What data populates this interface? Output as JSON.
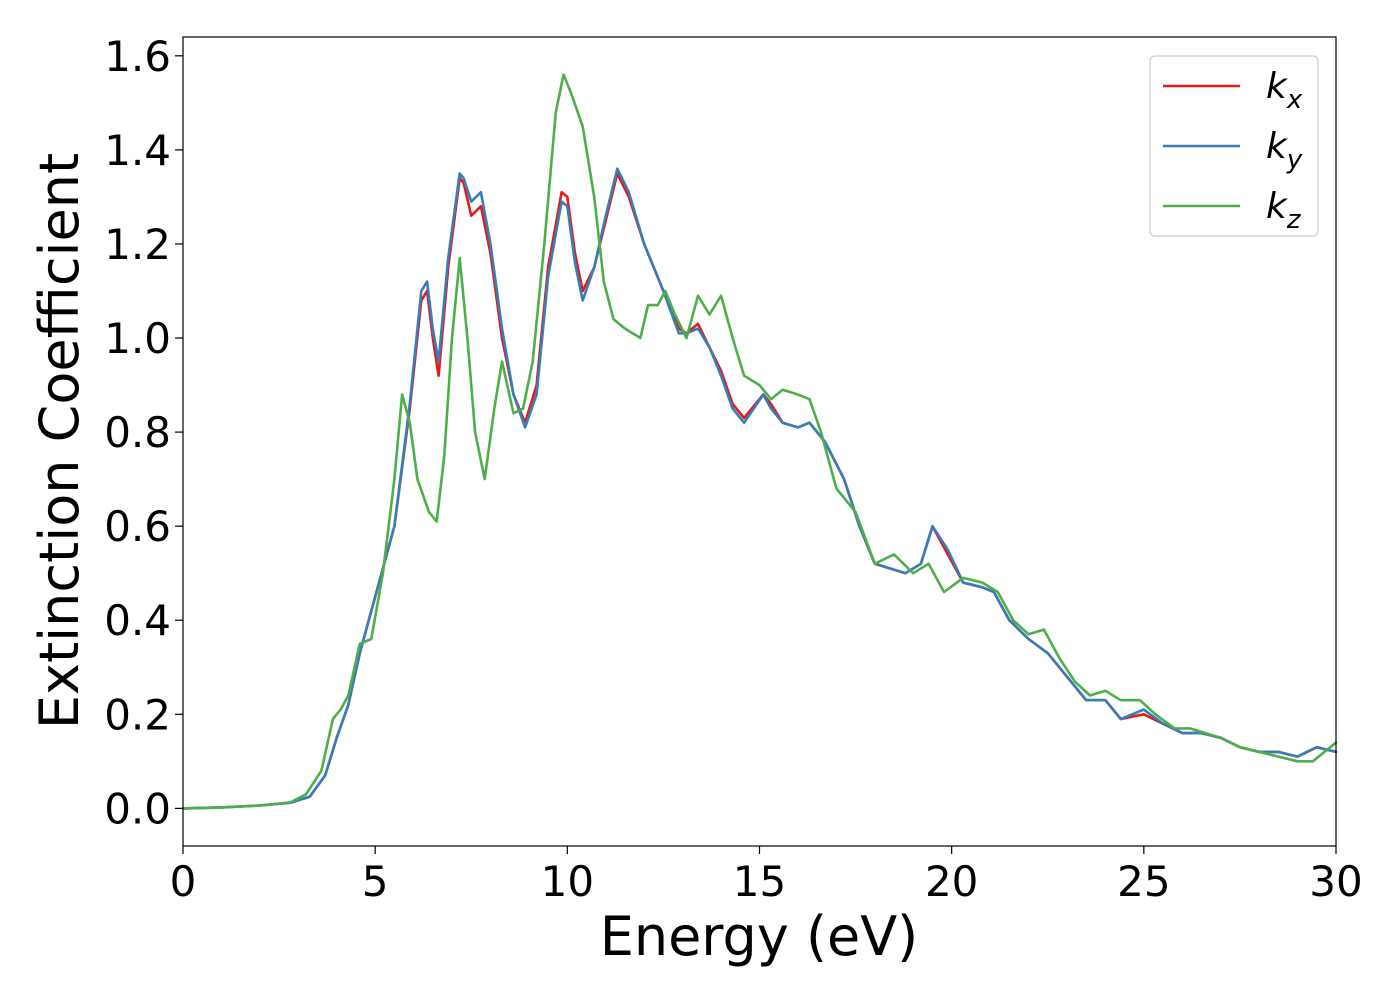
{
  "chart_data": {
    "type": "line",
    "xlabel": "Energy (eV)",
    "ylabel": "Extinction Coefficient",
    "xlim": [
      0,
      30
    ],
    "ylim": [
      -0.08,
      1.64
    ],
    "xticks": [
      0,
      5,
      10,
      15,
      20,
      25,
      30
    ],
    "yticks": [
      0.0,
      0.2,
      0.4,
      0.6,
      0.8,
      1.0,
      1.2,
      1.4,
      1.6
    ],
    "grid": false,
    "legend": "top-right",
    "series": [
      {
        "name": "k_x",
        "label_base": "k",
        "label_sub": "x",
        "color": "#e41a1c",
        "points": [
          [
            0,
            0.0
          ],
          [
            1,
            0.002
          ],
          [
            2,
            0.006
          ],
          [
            2.8,
            0.012
          ],
          [
            3.3,
            0.025
          ],
          [
            3.7,
            0.07
          ],
          [
            4.0,
            0.15
          ],
          [
            4.3,
            0.22
          ],
          [
            4.6,
            0.33
          ],
          [
            5.0,
            0.45
          ],
          [
            5.5,
            0.6
          ],
          [
            5.9,
            0.85
          ],
          [
            6.2,
            1.08
          ],
          [
            6.35,
            1.1
          ],
          [
            6.5,
            1.0
          ],
          [
            6.65,
            0.92
          ],
          [
            6.9,
            1.15
          ],
          [
            7.2,
            1.34
          ],
          [
            7.3,
            1.33
          ],
          [
            7.5,
            1.26
          ],
          [
            7.75,
            1.28
          ],
          [
            8.0,
            1.18
          ],
          [
            8.3,
            1.0
          ],
          [
            8.6,
            0.88
          ],
          [
            8.9,
            0.82
          ],
          [
            9.2,
            0.9
          ],
          [
            9.5,
            1.15
          ],
          [
            9.85,
            1.31
          ],
          [
            10.0,
            1.3
          ],
          [
            10.2,
            1.18
          ],
          [
            10.4,
            1.1
          ],
          [
            10.7,
            1.15
          ],
          [
            11.0,
            1.25
          ],
          [
            11.3,
            1.35
          ],
          [
            11.6,
            1.3
          ],
          [
            12.0,
            1.2
          ],
          [
            12.5,
            1.1
          ],
          [
            12.9,
            1.02
          ],
          [
            13.1,
            1.01
          ],
          [
            13.4,
            1.03
          ],
          [
            13.7,
            0.98
          ],
          [
            14.0,
            0.93
          ],
          [
            14.3,
            0.86
          ],
          [
            14.6,
            0.83
          ],
          [
            15.1,
            0.88
          ],
          [
            15.3,
            0.86
          ],
          [
            15.6,
            0.82
          ],
          [
            16.0,
            0.81
          ],
          [
            16.3,
            0.82
          ],
          [
            16.7,
            0.78
          ],
          [
            17.2,
            0.7
          ],
          [
            17.6,
            0.6
          ],
          [
            18.0,
            0.52
          ],
          [
            18.4,
            0.51
          ],
          [
            18.8,
            0.5
          ],
          [
            19.2,
            0.52
          ],
          [
            19.5,
            0.6
          ],
          [
            19.9,
            0.54
          ],
          [
            20.3,
            0.48
          ],
          [
            20.8,
            0.47
          ],
          [
            21.1,
            0.46
          ],
          [
            21.5,
            0.4
          ],
          [
            22.0,
            0.36
          ],
          [
            22.5,
            0.33
          ],
          [
            23.0,
            0.28
          ],
          [
            23.5,
            0.23
          ],
          [
            24.0,
            0.23
          ],
          [
            24.4,
            0.19
          ],
          [
            25.0,
            0.2
          ],
          [
            25.5,
            0.18
          ],
          [
            26.0,
            0.16
          ],
          [
            26.5,
            0.16
          ],
          [
            27.0,
            0.15
          ],
          [
            27.5,
            0.13
          ],
          [
            28.0,
            0.12
          ],
          [
            28.5,
            0.12
          ],
          [
            29.0,
            0.11
          ],
          [
            29.5,
            0.13
          ],
          [
            30,
            0.12
          ]
        ]
      },
      {
        "name": "k_y",
        "label_base": "k",
        "label_sub": "y",
        "color": "#377eb8",
        "points": [
          [
            0,
            0.0
          ],
          [
            1,
            0.002
          ],
          [
            2,
            0.006
          ],
          [
            2.8,
            0.012
          ],
          [
            3.3,
            0.025
          ],
          [
            3.7,
            0.07
          ],
          [
            4.0,
            0.15
          ],
          [
            4.3,
            0.22
          ],
          [
            4.6,
            0.33
          ],
          [
            5.0,
            0.45
          ],
          [
            5.5,
            0.6
          ],
          [
            5.9,
            0.86
          ],
          [
            6.2,
            1.1
          ],
          [
            6.35,
            1.12
          ],
          [
            6.5,
            1.02
          ],
          [
            6.65,
            0.95
          ],
          [
            6.9,
            1.17
          ],
          [
            7.2,
            1.35
          ],
          [
            7.3,
            1.34
          ],
          [
            7.5,
            1.29
          ],
          [
            7.75,
            1.31
          ],
          [
            8.0,
            1.2
          ],
          [
            8.3,
            1.02
          ],
          [
            8.6,
            0.88
          ],
          [
            8.9,
            0.81
          ],
          [
            9.2,
            0.88
          ],
          [
            9.5,
            1.13
          ],
          [
            9.85,
            1.29
          ],
          [
            10.0,
            1.28
          ],
          [
            10.2,
            1.16
          ],
          [
            10.4,
            1.08
          ],
          [
            10.7,
            1.15
          ],
          [
            11.0,
            1.26
          ],
          [
            11.3,
            1.36
          ],
          [
            11.6,
            1.31
          ],
          [
            12.0,
            1.2
          ],
          [
            12.5,
            1.1
          ],
          [
            12.9,
            1.01
          ],
          [
            13.1,
            1.01
          ],
          [
            13.4,
            1.02
          ],
          [
            13.7,
            0.98
          ],
          [
            14.0,
            0.92
          ],
          [
            14.3,
            0.85
          ],
          [
            14.6,
            0.82
          ],
          [
            15.1,
            0.88
          ],
          [
            15.3,
            0.85
          ],
          [
            15.6,
            0.82
          ],
          [
            16.0,
            0.81
          ],
          [
            16.3,
            0.82
          ],
          [
            16.7,
            0.78
          ],
          [
            17.2,
            0.7
          ],
          [
            17.6,
            0.6
          ],
          [
            18.0,
            0.52
          ],
          [
            18.4,
            0.51
          ],
          [
            18.8,
            0.5
          ],
          [
            19.2,
            0.52
          ],
          [
            19.5,
            0.6
          ],
          [
            19.9,
            0.55
          ],
          [
            20.3,
            0.48
          ],
          [
            20.8,
            0.47
          ],
          [
            21.1,
            0.46
          ],
          [
            21.5,
            0.4
          ],
          [
            22.0,
            0.36
          ],
          [
            22.5,
            0.33
          ],
          [
            23.0,
            0.28
          ],
          [
            23.5,
            0.23
          ],
          [
            24.0,
            0.23
          ],
          [
            24.4,
            0.19
          ],
          [
            25.0,
            0.21
          ],
          [
            25.5,
            0.18
          ],
          [
            26.0,
            0.16
          ],
          [
            26.5,
            0.16
          ],
          [
            27.0,
            0.15
          ],
          [
            27.5,
            0.13
          ],
          [
            28.0,
            0.12
          ],
          [
            28.5,
            0.12
          ],
          [
            29.0,
            0.11
          ],
          [
            29.5,
            0.13
          ],
          [
            30,
            0.12
          ]
        ]
      },
      {
        "name": "k_z",
        "label_base": "k",
        "label_sub": "z",
        "color": "#4daf4a",
        "points": [
          [
            0,
            0.0
          ],
          [
            1,
            0.002
          ],
          [
            2,
            0.006
          ],
          [
            2.8,
            0.013
          ],
          [
            3.2,
            0.03
          ],
          [
            3.6,
            0.08
          ],
          [
            3.9,
            0.19
          ],
          [
            4.1,
            0.21
          ],
          [
            4.3,
            0.24
          ],
          [
            4.6,
            0.35
          ],
          [
            4.9,
            0.36
          ],
          [
            5.2,
            0.5
          ],
          [
            5.5,
            0.7
          ],
          [
            5.7,
            0.88
          ],
          [
            5.9,
            0.82
          ],
          [
            6.1,
            0.7
          ],
          [
            6.4,
            0.63
          ],
          [
            6.6,
            0.61
          ],
          [
            6.8,
            0.75
          ],
          [
            7.0,
            1.0
          ],
          [
            7.2,
            1.17
          ],
          [
            7.4,
            1.0
          ],
          [
            7.6,
            0.8
          ],
          [
            7.85,
            0.7
          ],
          [
            8.1,
            0.85
          ],
          [
            8.3,
            0.95
          ],
          [
            8.6,
            0.84
          ],
          [
            8.85,
            0.85
          ],
          [
            9.1,
            0.95
          ],
          [
            9.4,
            1.2
          ],
          [
            9.7,
            1.48
          ],
          [
            9.9,
            1.56
          ],
          [
            10.1,
            1.52
          ],
          [
            10.4,
            1.45
          ],
          [
            10.7,
            1.3
          ],
          [
            10.95,
            1.12
          ],
          [
            11.2,
            1.04
          ],
          [
            11.5,
            1.02
          ],
          [
            11.9,
            1.0
          ],
          [
            12.1,
            1.07
          ],
          [
            12.35,
            1.07
          ],
          [
            12.55,
            1.1
          ],
          [
            12.8,
            1.05
          ],
          [
            13.1,
            1.0
          ],
          [
            13.4,
            1.09
          ],
          [
            13.7,
            1.05
          ],
          [
            14.0,
            1.09
          ],
          [
            14.3,
            1.0
          ],
          [
            14.6,
            0.92
          ],
          [
            15.0,
            0.9
          ],
          [
            15.3,
            0.87
          ],
          [
            15.6,
            0.89
          ],
          [
            16.0,
            0.88
          ],
          [
            16.3,
            0.87
          ],
          [
            16.6,
            0.8
          ],
          [
            17.0,
            0.68
          ],
          [
            17.5,
            0.63
          ],
          [
            18.0,
            0.52
          ],
          [
            18.5,
            0.54
          ],
          [
            19.0,
            0.5
          ],
          [
            19.4,
            0.52
          ],
          [
            19.8,
            0.46
          ],
          [
            20.3,
            0.49
          ],
          [
            20.8,
            0.48
          ],
          [
            21.2,
            0.46
          ],
          [
            21.6,
            0.4
          ],
          [
            22.0,
            0.37
          ],
          [
            22.4,
            0.38
          ],
          [
            22.8,
            0.32
          ],
          [
            23.2,
            0.27
          ],
          [
            23.6,
            0.24
          ],
          [
            24.0,
            0.25
          ],
          [
            24.4,
            0.23
          ],
          [
            24.9,
            0.23
          ],
          [
            25.3,
            0.2
          ],
          [
            25.8,
            0.17
          ],
          [
            26.2,
            0.17
          ],
          [
            26.6,
            0.16
          ],
          [
            27.0,
            0.15
          ],
          [
            27.5,
            0.13
          ],
          [
            28.0,
            0.12
          ],
          [
            28.5,
            0.11
          ],
          [
            29.0,
            0.1
          ],
          [
            29.4,
            0.1
          ],
          [
            29.7,
            0.12
          ],
          [
            30,
            0.14
          ]
        ]
      }
    ]
  }
}
